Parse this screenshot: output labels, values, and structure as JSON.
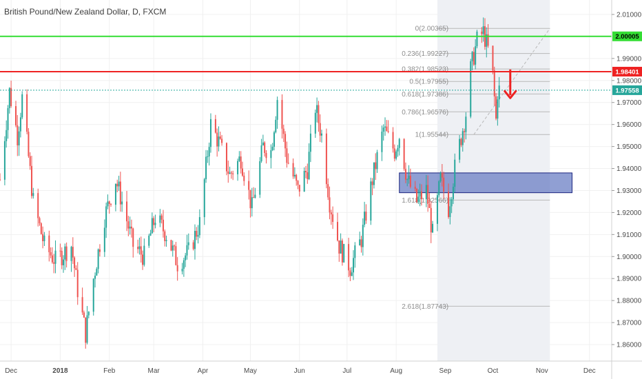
{
  "chart_data": {
    "type": "candlestick",
    "title": "British Pound/New Zealand Dollar, D, FXCM",
    "y_range": [
      1.855,
      2.015
    ],
    "y_ticks": [
      {
        "value": 2.01,
        "label": "2.01000"
      },
      {
        "value": 1.99,
        "label": "1.99000"
      },
      {
        "value": 1.98,
        "label": "1.98000"
      },
      {
        "value": 1.97,
        "label": "1.97000"
      },
      {
        "value": 1.96,
        "label": "1.96000"
      },
      {
        "value": 1.95,
        "label": "1.95000"
      },
      {
        "value": 1.94,
        "label": "1.94000"
      },
      {
        "value": 1.93,
        "label": "1.93000"
      },
      {
        "value": 1.92,
        "label": "1.92000"
      },
      {
        "value": 1.91,
        "label": "1.91000"
      },
      {
        "value": 1.9,
        "label": "1.90000"
      },
      {
        "value": 1.89,
        "label": "1.89000"
      },
      {
        "value": 1.88,
        "label": "1.88000"
      },
      {
        "value": 1.87,
        "label": "1.87000"
      },
      {
        "value": 1.86,
        "label": "1.86000"
      }
    ],
    "x_range": [
      "2017-11-24",
      "2018-12-15"
    ],
    "x_ticks": [
      {
        "date": "2017-12-01",
        "label": "Dec"
      },
      {
        "date": "2018-01-01",
        "label": "2018"
      },
      {
        "date": "2018-02-01",
        "label": "Feb"
      },
      {
        "date": "2018-03-01",
        "label": "Mar"
      },
      {
        "date": "2018-04-01",
        "label": "Apr"
      },
      {
        "date": "2018-05-01",
        "label": "May"
      },
      {
        "date": "2018-06-01",
        "label": "Jun"
      },
      {
        "date": "2018-07-01",
        "label": "Jul"
      },
      {
        "date": "2018-08-01",
        "label": "Aug"
      },
      {
        "date": "2018-09-01",
        "label": "Sep"
      },
      {
        "date": "2018-10-01",
        "label": "Oct"
      },
      {
        "date": "2018-11-01",
        "label": "Nov"
      },
      {
        "date": "2018-12-01",
        "label": "Dec"
      }
    ],
    "price_path": [
      [
        "2017-11-24",
        1.935
      ],
      [
        "2017-11-30",
        1.975
      ],
      [
        "2017-12-05",
        1.955
      ],
      [
        "2017-12-08",
        1.972
      ],
      [
        "2017-12-15",
        1.925
      ],
      [
        "2017-12-22",
        1.905
      ],
      [
        "2017-12-29",
        1.898
      ],
      [
        "2018-01-08",
        1.905
      ],
      [
        "2018-01-12",
        1.885
      ],
      [
        "2018-01-17",
        1.865
      ],
      [
        "2018-01-22",
        1.89
      ],
      [
        "2018-01-29",
        1.918
      ],
      [
        "2018-02-05",
        1.935
      ],
      [
        "2018-02-09",
        1.925
      ],
      [
        "2018-02-16",
        1.905
      ],
      [
        "2018-02-23",
        1.9
      ],
      [
        "2018-03-02",
        1.918
      ],
      [
        "2018-03-09",
        1.91
      ],
      [
        "2018-03-16",
        1.897
      ],
      [
        "2018-03-23",
        1.902
      ],
      [
        "2018-03-30",
        1.915
      ],
      [
        "2018-04-06",
        1.96
      ],
      [
        "2018-04-11",
        1.952
      ],
      [
        "2018-04-18",
        1.937
      ],
      [
        "2018-04-25",
        1.945
      ],
      [
        "2018-05-02",
        1.922
      ],
      [
        "2018-05-09",
        1.95
      ],
      [
        "2018-05-14",
        1.948
      ],
      [
        "2018-05-18",
        1.972
      ],
      [
        "2018-05-24",
        1.945
      ],
      [
        "2018-05-31",
        1.93
      ],
      [
        "2018-06-06",
        1.94
      ],
      [
        "2018-06-11",
        1.968
      ],
      [
        "2018-06-15",
        1.955
      ],
      [
        "2018-06-20",
        1.925
      ],
      [
        "2018-06-26",
        1.905
      ],
      [
        "2018-07-03",
        1.895
      ],
      [
        "2018-07-10",
        1.908
      ],
      [
        "2018-07-17",
        1.935
      ],
      [
        "2018-07-24",
        1.958
      ],
      [
        "2018-07-31",
        1.948
      ],
      [
        "2018-08-03",
        1.955
      ],
      [
        "2018-08-08",
        1.935
      ],
      [
        "2018-08-14",
        1.925
      ],
      [
        "2018-08-20",
        1.93
      ],
      [
        "2018-08-24",
        1.91
      ],
      [
        "2018-08-29",
        1.935
      ],
      [
        "2018-09-03",
        1.922
      ],
      [
        "2018-09-07",
        1.94
      ],
      [
        "2018-09-12",
        1.958
      ],
      [
        "2018-09-14",
        1.965
      ],
      [
        "2018-09-17",
        1.985
      ],
      [
        "2018-09-21",
        1.998
      ],
      [
        "2018-09-25",
        2.002
      ],
      [
        "2018-09-28",
        1.994
      ],
      [
        "2018-10-01",
        1.982
      ],
      [
        "2018-10-03",
        1.962
      ],
      [
        "2018-10-04",
        1.975
      ],
      [
        "2018-10-05",
        1.9756
      ]
    ],
    "horizontal_lines": [
      {
        "name": "resistance-high",
        "value": 2.00005,
        "label": "2.00005",
        "color": "#33dd33"
      },
      {
        "name": "resistance-low",
        "value": 1.98401,
        "label": "1.98401",
        "color": "#ee2222"
      },
      {
        "name": "last-price",
        "value": 1.97558,
        "label": "1.97558",
        "color": "#26a69a",
        "dotted": true
      }
    ],
    "fibonacci": {
      "x_start": "2018-08-27",
      "x_end": "2018-11-06",
      "levels": [
        {
          "label": "0(2.00365)",
          "value": 2.00365
        },
        {
          "label": "0.236(1.99227)",
          "value": 1.99227
        },
        {
          "label": "0.382(1.98523)",
          "value": 1.98523
        },
        {
          "label": "0.5(1.97955)",
          "value": 1.97955
        },
        {
          "label": "0.618(1.97386)",
          "value": 1.97386
        },
        {
          "label": "0.786(1.96576)",
          "value": 1.96576
        },
        {
          "label": "1(1.95544)",
          "value": 1.95544
        },
        {
          "label": "1.618(1.92566)",
          "value": 1.92566
        },
        {
          "label": "2.618(1.87743)",
          "value": 1.87743
        }
      ]
    },
    "demand_zone": {
      "x_start": "2018-08-03",
      "x_end": "2018-11-20",
      "y_low": 1.929,
      "y_high": 1.938,
      "color": "#6b7fc4"
    },
    "arrow": {
      "date": "2018-10-12",
      "y_top": 1.985,
      "y_bottom": 1.972,
      "direction": "down",
      "color": "#ee2222"
    },
    "colors": {
      "up": "#26a69a",
      "down": "#ef5350",
      "grid": "#f0f0f0",
      "shade": "#eef0f4"
    }
  }
}
